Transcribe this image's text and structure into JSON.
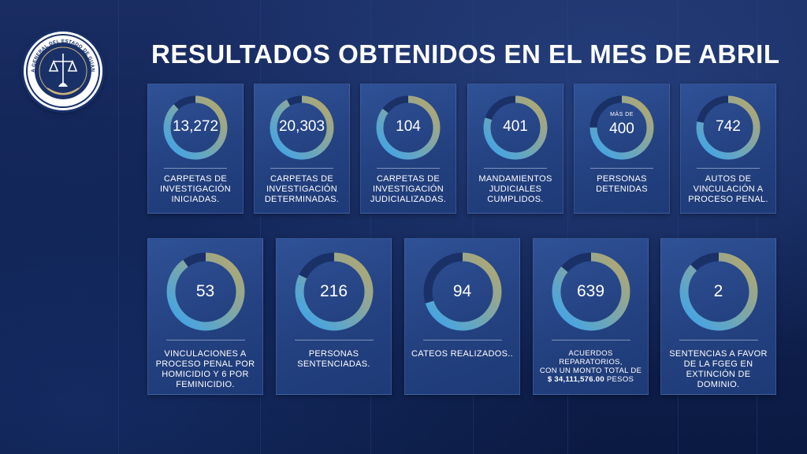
{
  "header": {
    "title": "RESULTADOS OBTENIDOS EN EL MES DE ABRIL",
    "logo_text": "FISCALÍA GENERAL DEL ESTADO DE GUANAJUATO"
  },
  "colors": {
    "ring_blue": "#3ba4ee",
    "ring_gold": "#b9a86a",
    "ring_track": "#1a3168",
    "card": "#2a4a8e",
    "background": "#0e1f4d"
  },
  "cards": [
    {
      "value": "13,272",
      "prefix": "",
      "label": [
        "CARPETAS DE",
        "INVESTIGACIÓN",
        "INICIADAS."
      ],
      "fill": 0.88
    },
    {
      "value": "20,303",
      "prefix": "",
      "label": [
        "CARPETAS DE",
        "INVESTIGACIÓN",
        "DETERMINADAS."
      ],
      "fill": 0.92
    },
    {
      "value": "104",
      "prefix": "",
      "label": [
        "CARPETAS DE",
        "INVESTIGACIÓN",
        "JUDICIALIZADAS."
      ],
      "fill": 0.85
    },
    {
      "value": "401",
      "prefix": "",
      "label": [
        "MANDAMIENTOS",
        "JUDICIALES",
        "CUMPLIDOS."
      ],
      "fill": 0.8
    },
    {
      "value": "400",
      "prefix": "MÁS DE",
      "label": [
        "PERSONAS",
        "DETENIDAS"
      ],
      "fill": 0.75
    },
    {
      "value": "742",
      "prefix": "",
      "label": [
        "AUTOS DE",
        "VINCULACIÓN A",
        "PROCESO PENAL."
      ],
      "fill": 0.78
    },
    {
      "value": "53",
      "prefix": "",
      "label": [
        "VINCULACIONES A",
        "PROCESO PENAL POR",
        "HOMICIDIO Y 6 POR",
        "FEMINICIDIO."
      ],
      "fill": 0.9
    },
    {
      "value": "216",
      "prefix": "",
      "label": [
        "PERSONAS",
        "SENTENCIADAS."
      ],
      "fill": 0.82
    },
    {
      "value": "94",
      "prefix": "",
      "label": [
        "CATEOS REALIZADOS.."
      ],
      "fill": 0.7
    },
    {
      "value": "639",
      "prefix": "",
      "label": [
        "ACUERDOS REPARATORIOS,",
        "CON UN MONTO TOTAL DE"
      ],
      "amount": "$ 34,111,576.00",
      "amount_suffix": " PESOS",
      "fill": 0.86
    },
    {
      "value": "2",
      "prefix": "",
      "label": [
        "SENTENCIAS A FAVOR",
        "DE LA FGEG EN",
        "EXTINCIÓN DE",
        "DOMINIO."
      ],
      "fill": 0.87
    }
  ]
}
